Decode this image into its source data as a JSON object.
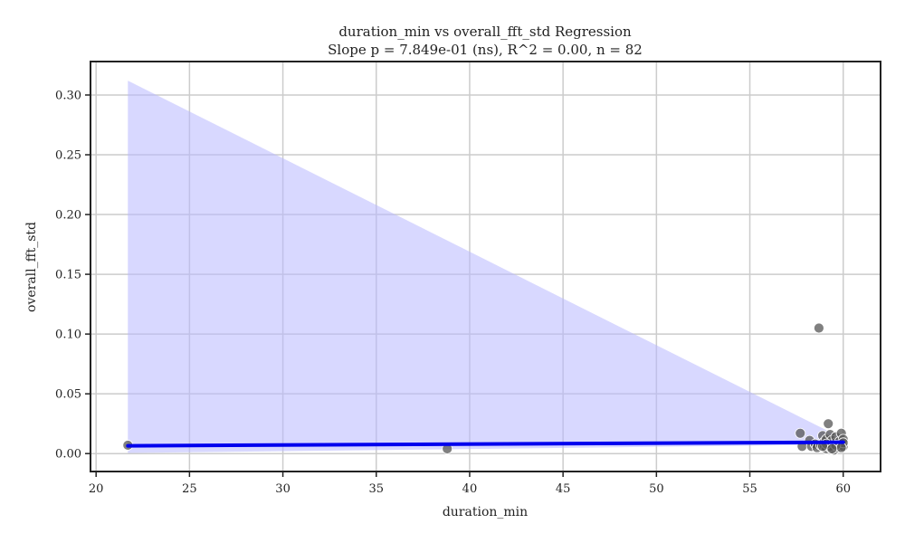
{
  "chart_data": {
    "type": "scatter",
    "title": "duration_min vs overall_fft_std Regression",
    "subtitle": "Slope p = 7.849e-01 (ns), R^2 = 0.00, n = 82",
    "xlabel": "duration_min",
    "ylabel": "overall_fft_std",
    "xlim": [
      19.7,
      62.0
    ],
    "ylim": [
      -0.015,
      0.328
    ],
    "x_ticks": [
      20,
      25,
      30,
      35,
      40,
      45,
      50,
      55,
      60
    ],
    "x_tick_labels": [
      "20",
      "25",
      "30",
      "35",
      "40",
      "45",
      "50",
      "55",
      "60"
    ],
    "y_ticks": [
      0.0,
      0.05,
      0.1,
      0.15,
      0.2,
      0.25,
      0.3
    ],
    "y_tick_labels": [
      "0.00",
      "0.05",
      "0.10",
      "0.15",
      "0.20",
      "0.25",
      "0.30"
    ],
    "grid": true,
    "points": [
      {
        "x": 21.7,
        "y": 0.007
      },
      {
        "x": 38.8,
        "y": 0.004
      },
      {
        "x": 57.7,
        "y": 0.017
      },
      {
        "x": 57.8,
        "y": 0.006
      },
      {
        "x": 58.2,
        "y": 0.011
      },
      {
        "x": 58.3,
        "y": 0.006
      },
      {
        "x": 58.5,
        "y": 0.008
      },
      {
        "x": 58.6,
        "y": 0.005
      },
      {
        "x": 58.7,
        "y": 0.105
      },
      {
        "x": 58.8,
        "y": 0.007
      },
      {
        "x": 58.9,
        "y": 0.015
      },
      {
        "x": 59.0,
        "y": 0.006
      },
      {
        "x": 59.0,
        "y": 0.01
      },
      {
        "x": 59.1,
        "y": 0.004
      },
      {
        "x": 59.1,
        "y": 0.012
      },
      {
        "x": 59.2,
        "y": 0.007
      },
      {
        "x": 59.2,
        "y": 0.025
      },
      {
        "x": 59.3,
        "y": 0.005
      },
      {
        "x": 59.3,
        "y": 0.016
      },
      {
        "x": 59.4,
        "y": 0.008
      },
      {
        "x": 59.4,
        "y": 0.011
      },
      {
        "x": 59.5,
        "y": 0.006
      },
      {
        "x": 59.5,
        "y": 0.003
      },
      {
        "x": 59.6,
        "y": 0.009
      },
      {
        "x": 59.6,
        "y": 0.014
      },
      {
        "x": 59.7,
        "y": 0.005
      },
      {
        "x": 59.7,
        "y": 0.007
      },
      {
        "x": 59.8,
        "y": 0.01
      },
      {
        "x": 59.8,
        "y": 0.006
      },
      {
        "x": 59.9,
        "y": 0.017
      },
      {
        "x": 59.9,
        "y": 0.008
      },
      {
        "x": 60.0,
        "y": 0.006
      },
      {
        "x": 60.0,
        "y": 0.012
      },
      {
        "x": 60.0,
        "y": 0.009
      },
      {
        "x": 59.3,
        "y": 0.006
      },
      {
        "x": 59.1,
        "y": 0.008
      },
      {
        "x": 59.6,
        "y": 0.007
      },
      {
        "x": 59.9,
        "y": 0.005
      },
      {
        "x": 58.9,
        "y": 0.006
      },
      {
        "x": 59.4,
        "y": 0.004
      }
    ],
    "regression_line": {
      "x": [
        21.7,
        60.0
      ],
      "y": [
        0.0065,
        0.0095
      ]
    },
    "confidence_band": {
      "x": [
        21.7,
        60.0
      ],
      "upper": [
        0.312,
        0.0125
      ],
      "lower": [
        0.0005,
        0.0075
      ]
    },
    "colors": {
      "points": "#555555",
      "point_edge": "#ffffff",
      "line": "#0000ee",
      "band": "#b8b8ff",
      "grid": "#cccccc",
      "axis": "#222222"
    }
  }
}
